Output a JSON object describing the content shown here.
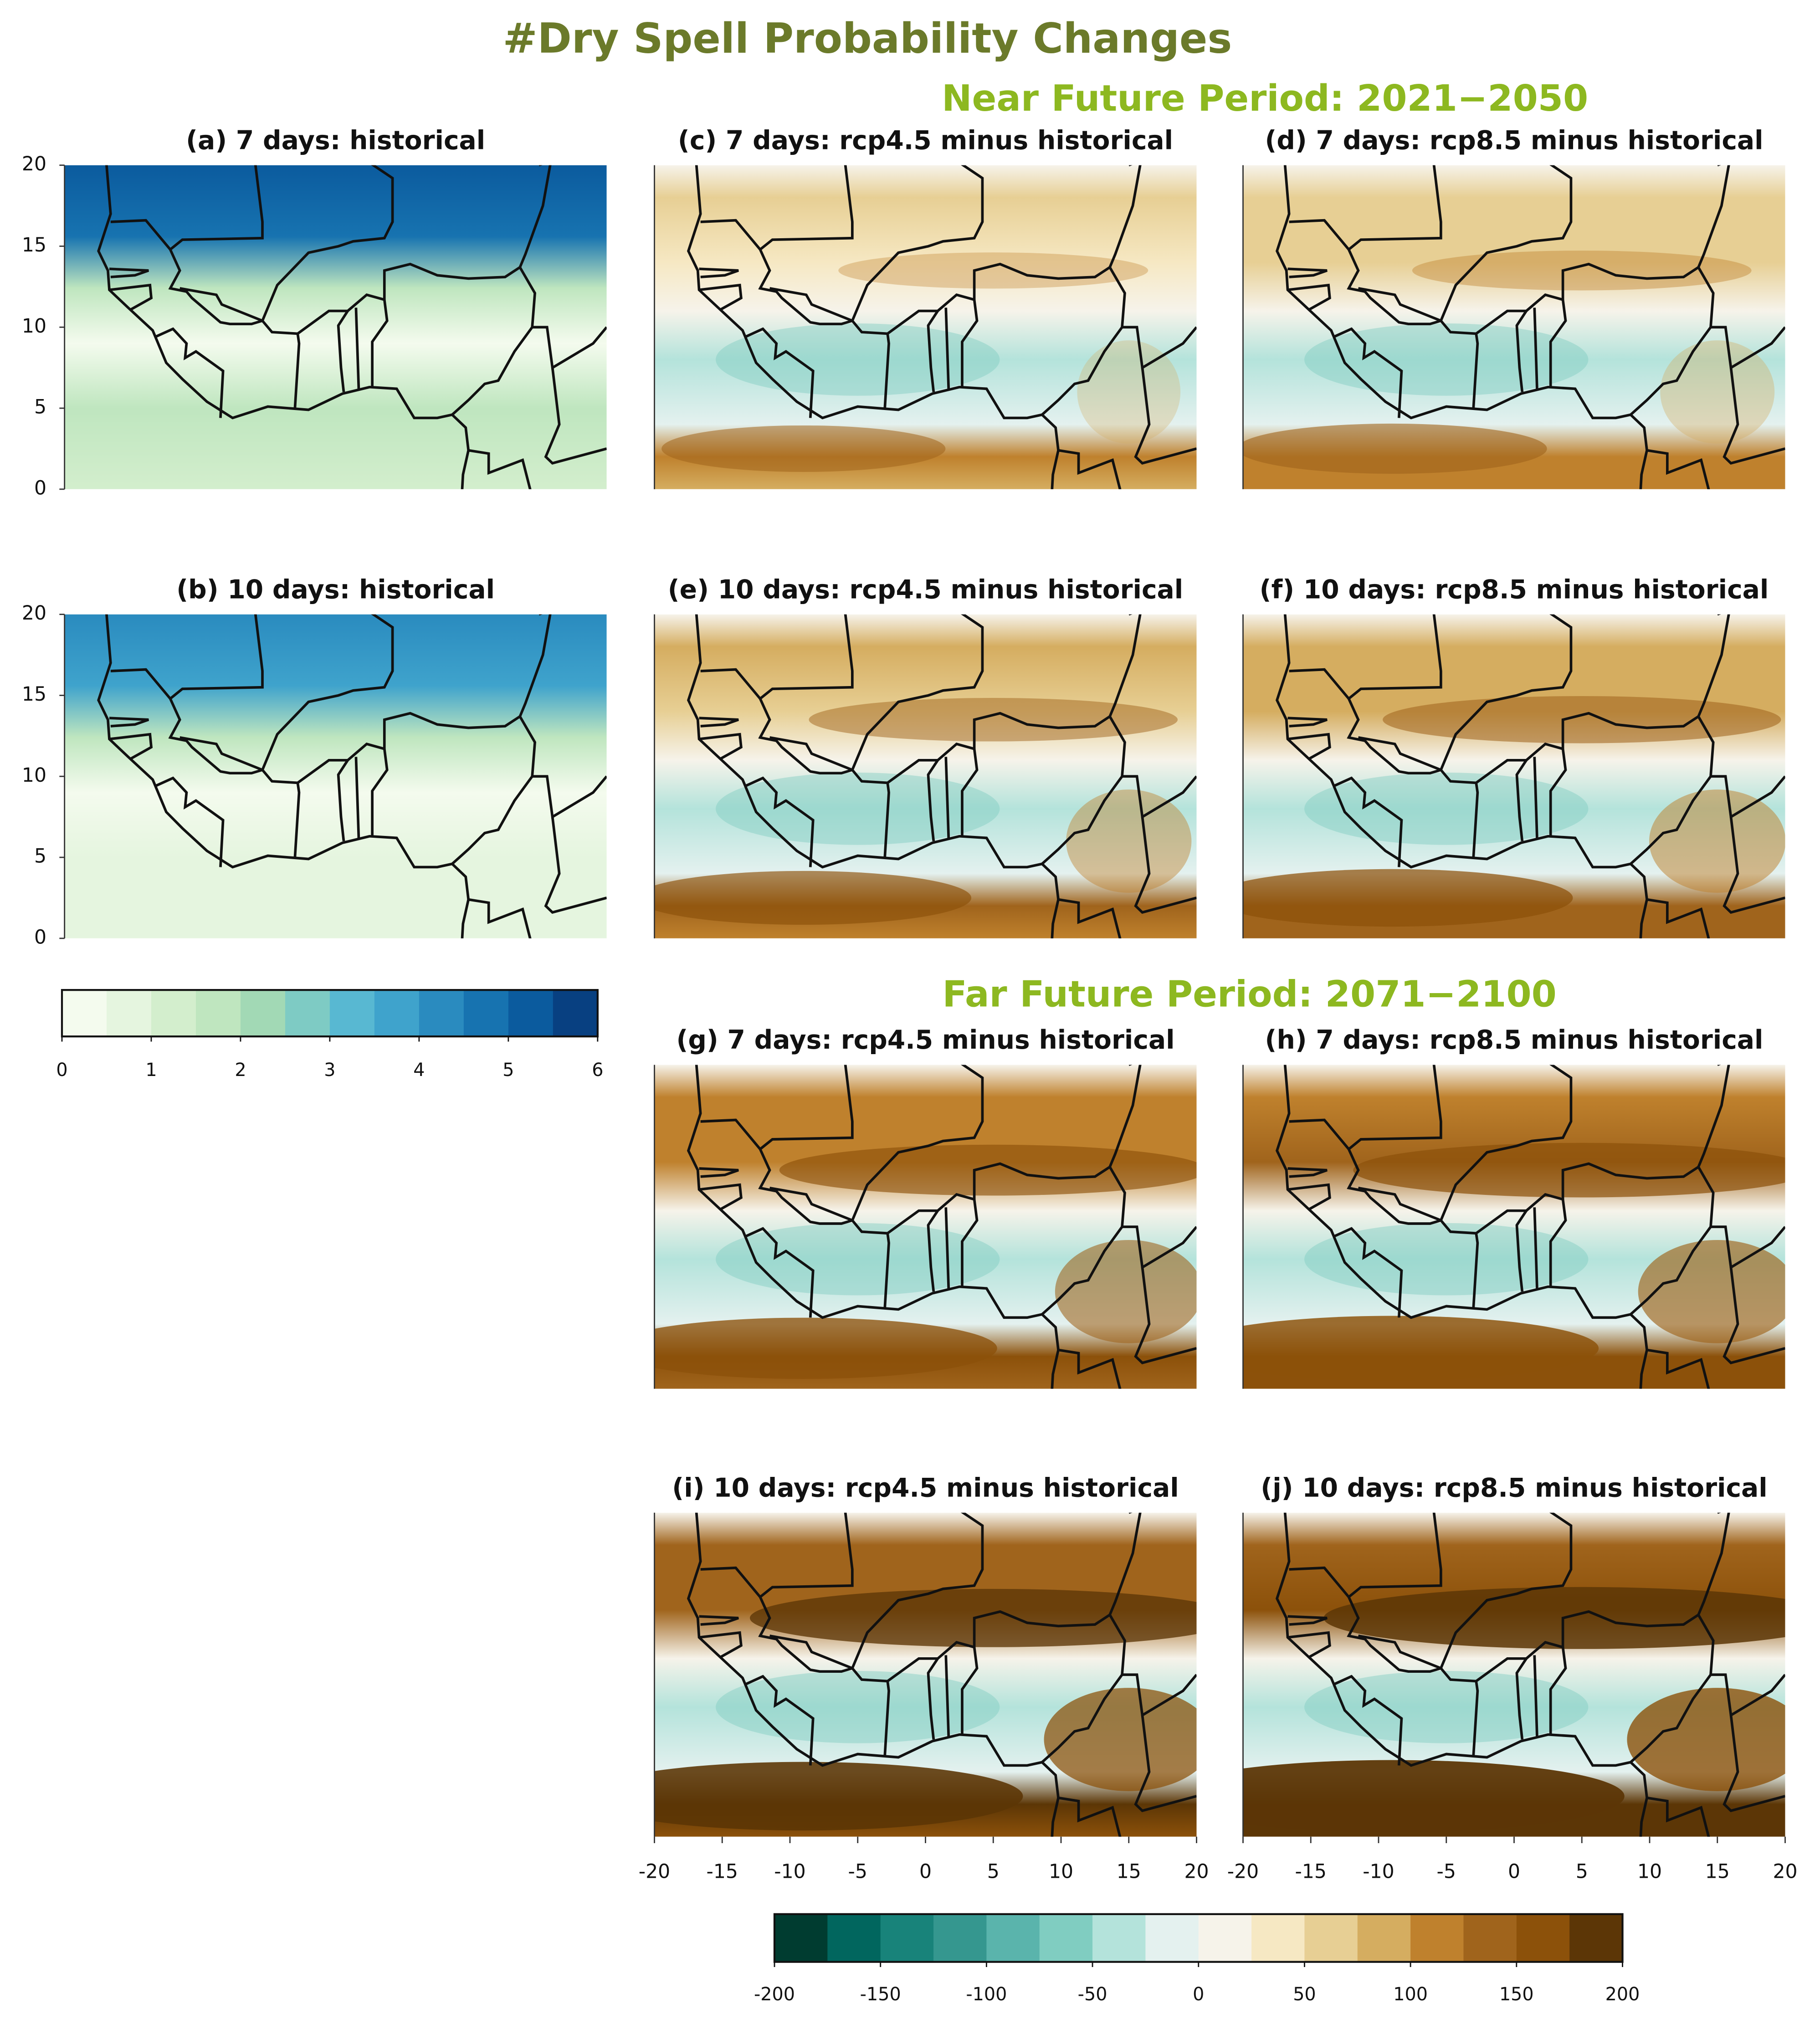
{
  "title": "#Dry Spell Probability Changes",
  "periods": [
    "Near Future Period: 2021−2050",
    "Far Future Period: 2071−2100"
  ],
  "panels": [
    "(a) 7 days: historical",
    "(b) 10 days: historical",
    "(c) 7 days: rcp4.5 minus historical",
    "(d) 7 days: rcp8.5 minus historical",
    "(e) 10 days: rcp4.5 minus historical",
    "(f) 10 days: rcp8.5 minus historical",
    "(g) 7 days: rcp4.5 minus historical",
    "(h) 7 days: rcp8.5 minus historical",
    "(i) 10 days: rcp4.5 minus historical",
    "(j) 10 days: rcp8.5 minus historical"
  ],
  "lon_ticks": [
    -20,
    -15,
    -10,
    -5,
    0,
    5,
    10,
    15,
    20
  ],
  "lat_ticks": [
    0,
    5,
    10,
    15,
    20
  ],
  "colorbars": [
    {
      "ticks": [
        0,
        1,
        2,
        3,
        4,
        5,
        6
      ],
      "colors": [
        "#f4fbee",
        "#e5f5df",
        "#d3eecd",
        "#bfe6bf",
        "#a2d9b5",
        "#7ecbc4",
        "#58b8d2",
        "#3fa3cc",
        "#2a8bbf",
        "#1773b0",
        "#0b5b9e",
        "#084081"
      ]
    },
    {
      "ticks": [
        -200,
        -150,
        -100,
        -50,
        0,
        50,
        100,
        150,
        200
      ],
      "colors": [
        "#003c30",
        "#01665e",
        "#18837a",
        "#35978f",
        "#5ab4ac",
        "#80cdc1",
        "#b4e3db",
        "#e4f1ef",
        "#f6f3ea",
        "#f6e8c3",
        "#e7cf94",
        "#d5ad60",
        "#bf812d",
        "#a0641c",
        "#8c510a",
        "#5c3606"
      ]
    }
  ]
}
